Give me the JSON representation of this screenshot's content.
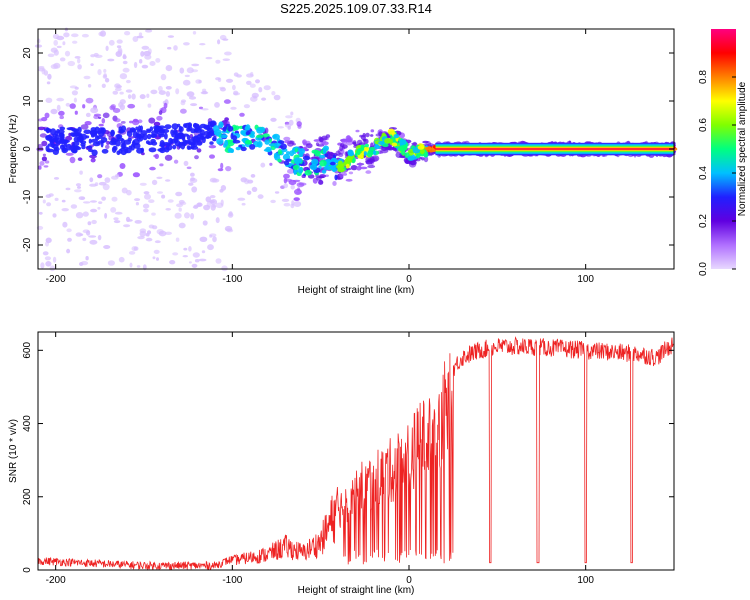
{
  "title": "S225.2025.109.07.33.R14",
  "chart_data": [
    {
      "type": "heatmap",
      "xlabel": "Height of straight line (km)",
      "ylabel": "Frequency (Hz)",
      "xlim": [
        -210,
        150
      ],
      "ylim": [
        -25,
        25
      ],
      "xticks": [
        -200,
        -100,
        0,
        100
      ],
      "yticks": [
        -20,
        -10,
        0,
        10,
        20
      ],
      "colorbar": {
        "label": "Normalized spectral amplitude",
        "range": [
          0,
          1
        ],
        "ticks": [
          "0.0",
          "0.2",
          "0.4",
          "0.6",
          "0.8"
        ],
        "colors": [
          "#e8d8ff",
          "#b070ff",
          "#6000e0",
          "#2020ff",
          "#00c0ff",
          "#00ff80",
          "#80ff00",
          "#ffff00",
          "#ff8000",
          "#ff0000",
          "#ff0080"
        ]
      },
      "ridge": {
        "x": [
          -205,
          -190,
          -170,
          -150,
          -130,
          -110,
          -100,
          -90,
          -80,
          -70,
          -60,
          -50,
          -45,
          -40,
          -35,
          -30,
          -25,
          -20,
          -15,
          -10,
          -5,
          0,
          10,
          20,
          40,
          60,
          80,
          100,
          120,
          150
        ],
        "y": [
          1.5,
          2,
          1.5,
          2,
          2.5,
          3,
          2,
          2.5,
          1.5,
          -1.5,
          -3,
          -2.5,
          -2,
          -4,
          -2.5,
          -1,
          -0.5,
          0,
          1.5,
          2.5,
          1,
          -1,
          0,
          0,
          0,
          0,
          0,
          0,
          0,
          0
        ]
      }
    },
    {
      "type": "line",
      "xlabel": "Height of straight line (km)",
      "ylabel": "SNR (10 * v/v)",
      "xlim": [
        -210,
        150
      ],
      "ylim": [
        0,
        650
      ],
      "xticks": [
        -200,
        -100,
        0,
        100
      ],
      "yticks": [
        0,
        200,
        400,
        600
      ],
      "color": "#ee2222",
      "envelope": {
        "x": [
          -210,
          -150,
          -110,
          -100,
          -80,
          -70,
          -60,
          -50,
          -40,
          -30,
          -20,
          -10,
          0,
          10,
          20,
          30,
          40,
          50,
          70,
          100,
          130,
          140,
          150
        ],
        "y": [
          25,
          12,
          12,
          30,
          50,
          75,
          55,
          90,
          200,
          260,
          300,
          330,
          380,
          440,
          520,
          580,
          600,
          610,
          610,
          600,
          590,
          580,
          620
        ]
      },
      "dropouts_x": [
        46,
        73,
        100,
        126
      ]
    }
  ]
}
